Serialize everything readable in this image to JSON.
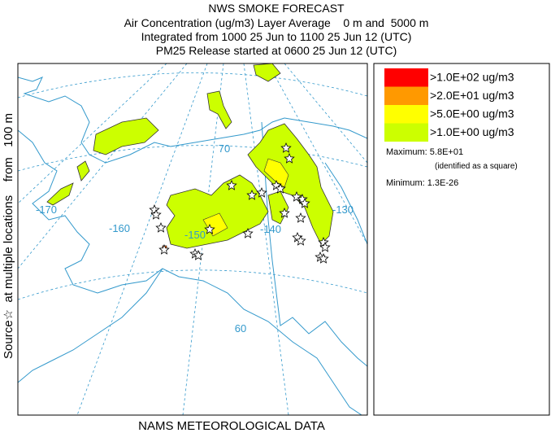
{
  "header": {
    "title": "NWS SMOKE FORECAST",
    "lines": [
      "Air Concentration (ug/m3) Layer Average    0 m and  5000 m",
      "Integrated from 1000 25 Jun to 1100 25 Jun 12 (UTC)",
      "PM25 Release started at 0600 25 Jun 12 (UTC)"
    ]
  },
  "side_label": "Source☆  at multiple locations    from   100 m",
  "footer": "NAMS METEOROLOGICAL DATA",
  "map": {
    "labels": [
      "-170",
      "-160",
      "-150",
      "-140",
      "-130",
      "70",
      "60"
    ]
  },
  "legend": {
    "items": [
      {
        "label": ">1.0E+02 ug/m3",
        "color": "#ff0000"
      },
      {
        "label": ">2.0E+01 ug/m3",
        "color": "#ff9900"
      },
      {
        "label": ">5.0E+00 ug/m3",
        "color": "#ffff00"
      },
      {
        "label": ">1.0E+00 ug/m3",
        "color": "#ccff00"
      }
    ],
    "maximum": "Maximum: 5.8E+01",
    "maximum_note": "(identified as a square)",
    "minimum": "Minimum: 1.3E-26"
  }
}
